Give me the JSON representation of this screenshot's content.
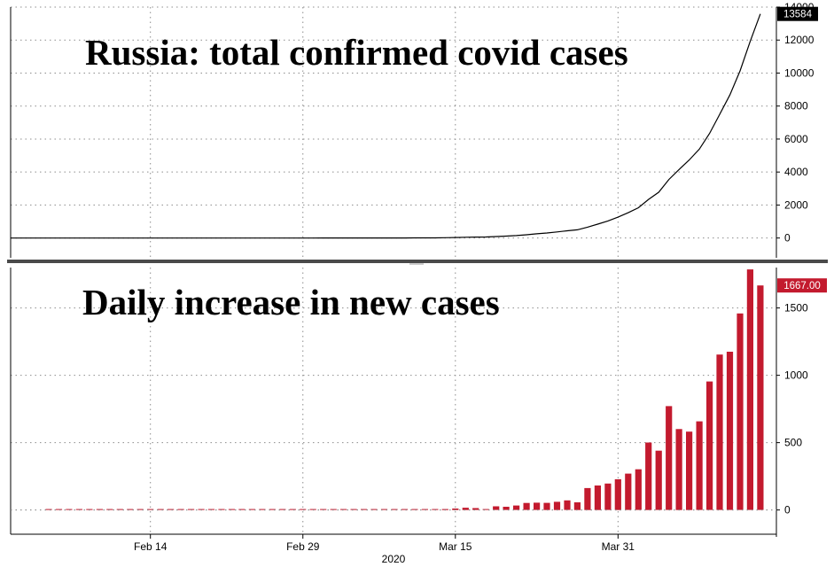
{
  "colors": {
    "bar": "#c31a2e",
    "line": "#000000",
    "divider": "#4a4a4a",
    "top_badge_bg": "#000000",
    "top_badge_text": "#ffffff",
    "bottom_badge_bg": "#c31a2e",
    "bottom_badge_text": "#ffffff"
  },
  "x_axis": {
    "start_date": "2020-02-04",
    "end_date": "2020-04-14",
    "ticks": [
      {
        "label": "Feb 14",
        "day": 10
      },
      {
        "label": "Feb 29",
        "day": 25
      },
      {
        "label": "Mar 15",
        "day": 40
      },
      {
        "label": "Mar 31",
        "day": 56
      }
    ],
    "year_label": "2020"
  },
  "chart_data": [
    {
      "type": "line",
      "title": "Russia: total confirmed covid cases",
      "ylim": [
        -1200,
        14000
      ],
      "yticks": [
        {
          "label": "0",
          "value": 0
        },
        {
          "label": "2000",
          "value": 2000
        },
        {
          "label": "4000",
          "value": 4000
        },
        {
          "label": "6000",
          "value": 6000
        },
        {
          "label": "8000",
          "value": 8000
        },
        {
          "label": "10000",
          "value": 10000
        },
        {
          "label": "12000",
          "value": 12000
        },
        {
          "label": "14000",
          "value": 14000
        }
      ],
      "last_value_label": "13584",
      "start_day": 0,
      "values": [
        0,
        0,
        0,
        0,
        0,
        0,
        0,
        0,
        0,
        0,
        0,
        0,
        0,
        0,
        0,
        0,
        0,
        0,
        0,
        0,
        0,
        0,
        0,
        0,
        0,
        0,
        0,
        2,
        2,
        2,
        2,
        3,
        3,
        3,
        3,
        4,
        7,
        10,
        10,
        17,
        28,
        45,
        59,
        63,
        90,
        114,
        147,
        199,
        253,
        306,
        367,
        438,
        495,
        658,
        840,
        1036,
        1264,
        1534,
        1836,
        2337,
        2777,
        3548,
        4149,
        4731,
        5389,
        6343,
        7497,
        8672,
        10131,
        11917,
        13584
      ]
    },
    {
      "type": "bar",
      "title": "Daily increase in new cases",
      "ylim": [
        -180,
        1800
      ],
      "yticks": [
        {
          "label": "0",
          "value": 0
        },
        {
          "label": "500",
          "value": 500
        },
        {
          "label": "1000",
          "value": 1000
        },
        {
          "label": "1500",
          "value": 1500
        }
      ],
      "last_value_label": "1667.00",
      "start_day": 0,
      "values": [
        0,
        0,
        0,
        0,
        0,
        0,
        0,
        0,
        0,
        0,
        0,
        0,
        0,
        0,
        0,
        0,
        0,
        0,
        0,
        0,
        0,
        0,
        0,
        0,
        0,
        0,
        0,
        2,
        0,
        0,
        0,
        1,
        0,
        0,
        0,
        1,
        3,
        3,
        0,
        7,
        11,
        17,
        14,
        4,
        27,
        24,
        33,
        52,
        54,
        53,
        61,
        71,
        57,
        163,
        182,
        196,
        228,
        270,
        302,
        501,
        440,
        771,
        601,
        582,
        658,
        954,
        1154,
        1175,
        1459,
        1786,
        1667
      ]
    }
  ]
}
